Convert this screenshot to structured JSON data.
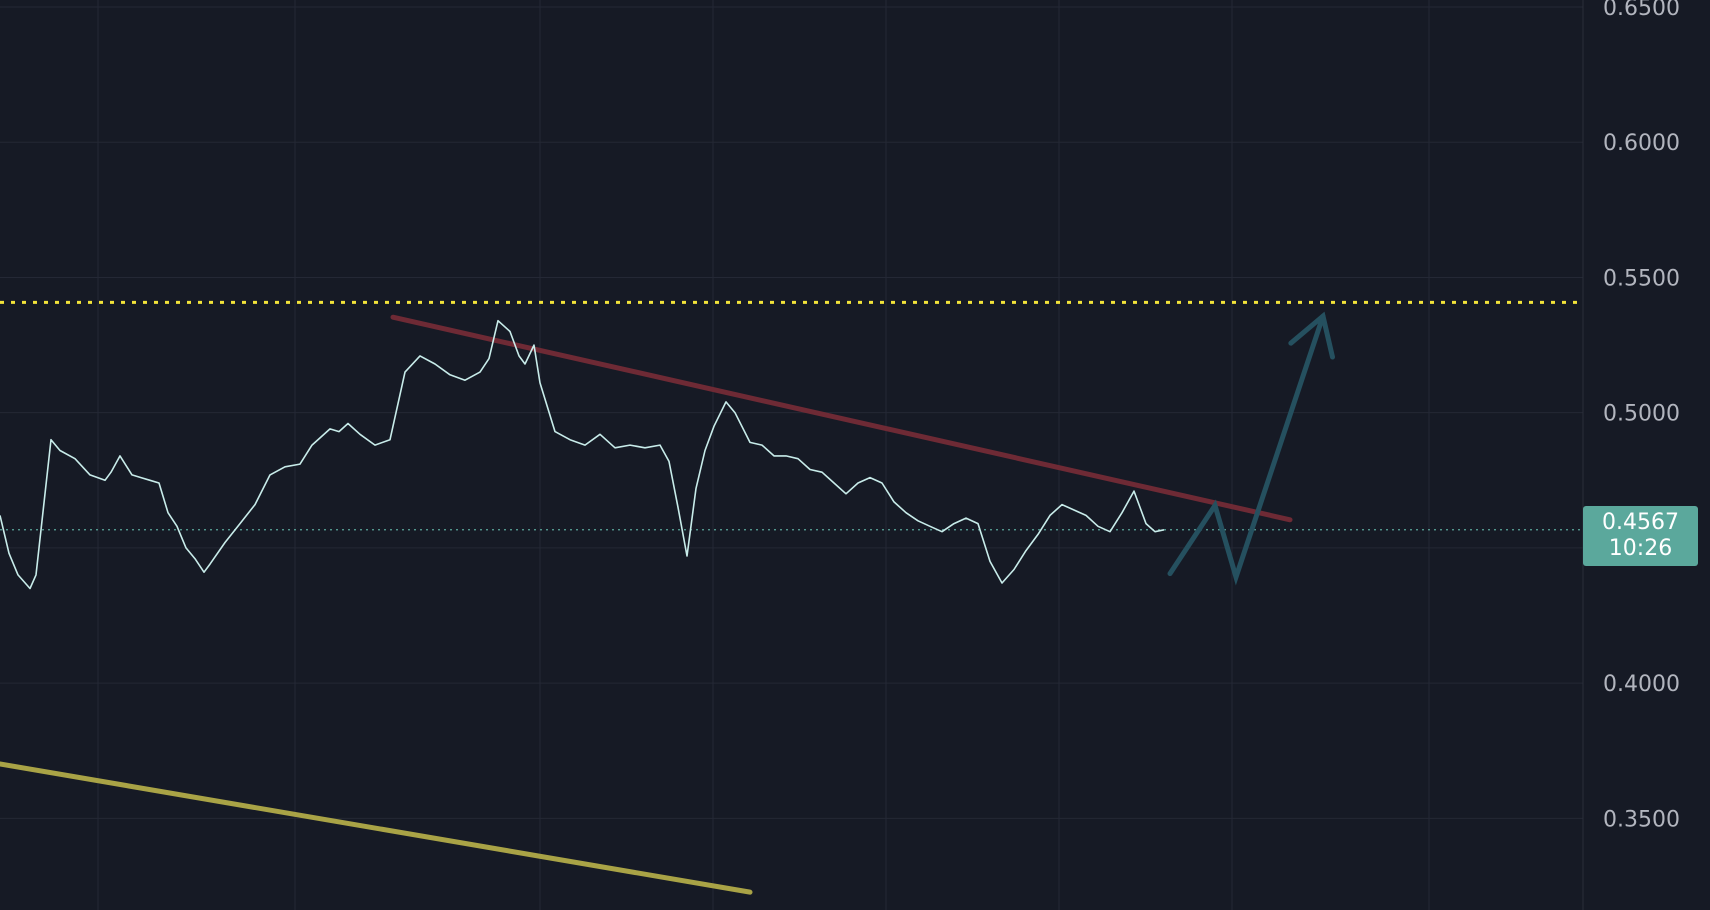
{
  "chart_data": {
    "type": "line",
    "title": "",
    "xlabel": "",
    "ylabel": "",
    "ylim": [
      0.3161,
      0.6526
    ],
    "y_ticks": [
      "0.6500",
      "0.6000",
      "0.5500",
      "0.5000",
      "0.4000",
      "0.3500"
    ],
    "grid": true,
    "x_gridline_count": 9,
    "current_price": {
      "value": 0.4567,
      "label": "0.4567",
      "countdown": "10:26",
      "color": "#5ba89c"
    },
    "horizontal_level": {
      "value": 0.5408,
      "style": "dotted",
      "color": "#f2e33a"
    },
    "price_series": {
      "name": "",
      "color": "#c8ecea",
      "x": [
        0,
        0.3,
        0.6,
        1.0,
        1.2,
        1.7,
        2.0,
        2.5,
        3.0,
        3.5,
        3.7,
        4.0,
        4.4,
        4.7,
        5.0,
        5.3,
        5.6,
        5.9,
        6.2,
        6.5,
        6.8,
        7.0,
        7.5,
        8.0,
        8.5,
        9.0,
        9.5,
        10.0,
        10.4,
        10.7,
        11.0,
        11.3,
        11.6,
        12.0,
        12.5,
        13.0,
        13.5,
        14.0,
        14.5,
        15.0,
        15.5,
        16.0,
        16.3,
        16.6,
        17.0,
        17.3,
        17.5,
        17.8,
        18.0,
        18.5,
        19.0,
        19.5,
        20.0,
        20.5,
        21.0,
        21.5,
        22.0,
        22.3,
        22.6,
        22.9,
        23.2,
        23.5,
        23.8,
        24.2,
        24.5,
        25.0,
        25.4,
        25.8,
        26.2,
        26.6,
        27.0,
        27.4,
        27.8,
        28.2,
        28.6,
        29.0,
        29.4,
        29.8,
        30.2,
        30.6,
        31.0,
        31.4,
        31.8,
        32.2,
        32.6,
        33.0,
        33.4,
        33.8,
        34.2,
        34.6,
        35.0,
        35.4,
        35.8,
        36.2,
        36.6,
        37.0,
        37.4,
        37.8,
        38.2,
        38.5,
        38.8
      ],
      "y": [
        0.462,
        0.448,
        0.44,
        0.435,
        0.44,
        0.49,
        0.486,
        0.483,
        0.477,
        0.475,
        0.478,
        0.484,
        0.477,
        0.476,
        0.475,
        0.474,
        0.463,
        0.458,
        0.45,
        0.446,
        0.441,
        0.444,
        0.452,
        0.459,
        0.466,
        0.477,
        0.48,
        0.481,
        0.488,
        0.491,
        0.494,
        0.493,
        0.496,
        0.492,
        0.488,
        0.49,
        0.515,
        0.521,
        0.518,
        0.514,
        0.512,
        0.515,
        0.52,
        0.534,
        0.53,
        0.521,
        0.518,
        0.525,
        0.511,
        0.493,
        0.49,
        0.488,
        0.492,
        0.487,
        0.488,
        0.487,
        0.488,
        0.482,
        0.465,
        0.447,
        0.472,
        0.486,
        0.495,
        0.504,
        0.5,
        0.489,
        0.488,
        0.484,
        0.484,
        0.483,
        0.479,
        0.478,
        0.474,
        0.47,
        0.474,
        0.476,
        0.474,
        0.467,
        0.463,
        0.46,
        0.458,
        0.456,
        0.459,
        0.461,
        0.459,
        0.445,
        0.437,
        0.442,
        0.449,
        0.455,
        0.462,
        0.466,
        0.464,
        0.462,
        0.458,
        0.456,
        0.463,
        0.471,
        0.459,
        0.456,
        0.4567
      ]
    },
    "trendlines": [
      {
        "name": "",
        "color": "#6e2a35",
        "x": [
          13.1,
          43.0
        ],
        "y": [
          0.5353,
          0.4604
        ]
      },
      {
        "name": "",
        "color": "#a9a346",
        "x": [
          0,
          25.0
        ],
        "y": [
          0.3701,
          0.3227
        ]
      }
    ],
    "projection": {
      "color": "#25505f",
      "x": [
        39.0,
        40.5,
        41.2,
        44.1
      ],
      "y": [
        0.4405,
        0.4657,
        0.4392,
        0.5357
      ]
    }
  }
}
